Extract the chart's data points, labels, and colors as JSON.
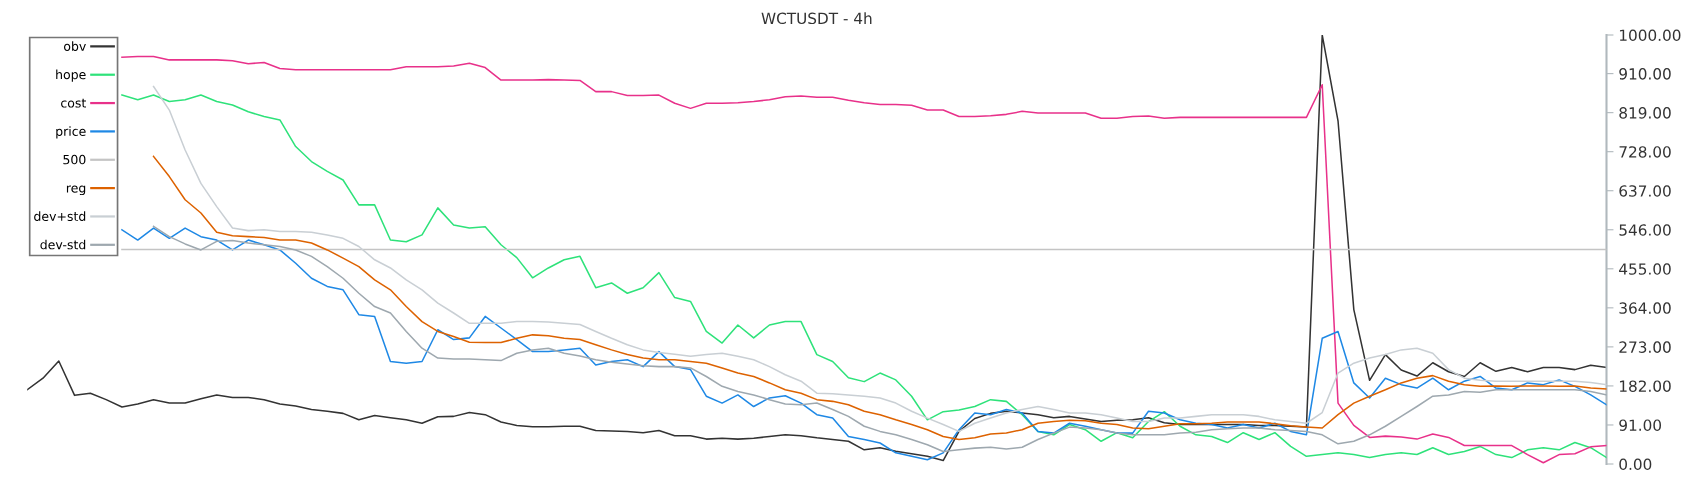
{
  "chart_data": {
    "type": "line",
    "title": "WCTUSDT - 4h",
    "categories": [
      null,
      null,
      null,
      null,
      null,
      null,
      null,
      null,
      null,
      null,
      null,
      null,
      null,
      null,
      null,
      null,
      null,
      null,
      null,
      null,
      null,
      null,
      null,
      null,
      null,
      null,
      null,
      null,
      null,
      null,
      null,
      null,
      null,
      null,
      null,
      null,
      null,
      null,
      null,
      null,
      null,
      null,
      null,
      null,
      null,
      null,
      null,
      null,
      null,
      null,
      null,
      null,
      null,
      null,
      null,
      null,
      null,
      null,
      null,
      null,
      null,
      null,
      null,
      null,
      null,
      null,
      null,
      null,
      null,
      null,
      null,
      null,
      null,
      null,
      null,
      null,
      null,
      null,
      null,
      null,
      null,
      null,
      null,
      null,
      null,
      null,
      null,
      null,
      null,
      null,
      null,
      null,
      null,
      null,
      null,
      null,
      null,
      null,
      null,
      null,
      null
    ],
    "series": [
      {
        "name": "obv",
        "color": "#333333",
        "values": [
          173,
          200,
          240,
          160,
          165,
          150,
          133,
          140,
          150,
          142,
          142,
          152,
          161,
          155,
          155,
          150,
          140,
          135,
          127,
          123,
          118,
          103,
          113,
          108,
          103,
          95,
          110,
          111,
          120,
          115,
          98,
          90,
          87,
          87,
          88,
          88,
          78,
          77,
          76,
          73,
          78,
          66,
          66,
          58,
          60,
          58,
          60,
          64,
          68,
          66,
          61,
          57,
          53,
          33,
          38,
          30,
          24,
          18,
          8,
          76,
          106,
          118,
          123,
          119,
          115,
          108,
          111,
          105,
          99,
          102,
          103,
          108,
          96,
          92,
          92,
          92,
          92,
          92,
          90,
          90,
          88,
          86,
          1000,
          800,
          360,
          195,
          255,
          219,
          205,
          236,
          215,
          204,
          236,
          216,
          225,
          215,
          225,
          225,
          220,
          230,
          225
        ]
      },
      {
        "name": "hope",
        "color": "#2ee27a",
        "values": [
          null,
          null,
          null,
          null,
          null,
          null,
          860,
          849,
          860,
          845,
          849,
          860,
          845,
          837,
          821,
          810,
          802,
          740,
          705,
          682,
          662,
          604,
          604,
          522,
          518,
          534,
          597,
          557,
          550,
          553,
          511,
          481,
          434,
          457,
          476,
          484,
          411,
          422,
          398,
          411,
          446,
          388,
          379,
          309,
          282,
          324,
          294,
          324,
          332,
          332,
          255,
          239,
          201,
          192,
          212,
          196,
          158,
          103,
          122,
          126,
          134,
          150,
          146,
          115,
          76,
          68,
          92,
          80,
          53,
          73,
          61,
          99,
          122,
          88,
          68,
          64,
          50,
          73,
          57,
          73,
          41,
          18,
          22,
          26,
          22,
          15,
          22,
          26,
          22,
          38,
          22,
          29,
          41,
          22,
          15,
          33,
          38,
          33,
          50,
          38,
          15
        ]
      },
      {
        "name": "cost",
        "color": "#e8318a",
        "values": [
          null,
          null,
          null,
          null,
          null,
          null,
          948,
          950,
          950,
          942,
          942,
          942,
          942,
          940,
          933,
          936,
          922,
          919,
          919,
          919,
          919,
          919,
          919,
          919,
          926,
          926,
          926,
          928,
          934,
          924,
          895,
          895,
          895,
          896,
          895,
          894,
          868,
          868,
          859,
          859,
          860,
          841,
          829,
          841,
          841,
          842,
          845,
          849,
          856,
          858,
          855,
          855,
          848,
          842,
          838,
          838,
          836,
          825,
          825,
          810,
          810,
          812,
          815,
          822,
          818,
          818,
          818,
          818,
          806,
          806,
          810,
          811,
          806,
          808,
          808,
          808,
          808,
          808,
          808,
          808,
          808,
          808,
          884,
          142,
          90,
          62,
          65,
          63,
          58,
          70,
          62,
          43,
          43,
          43,
          43,
          22,
          3,
          22,
          24,
          40,
          43
        ]
      },
      {
        "name": "price",
        "color": "#1e88e5",
        "values": [
          null,
          null,
          null,
          null,
          null,
          null,
          546,
          522,
          550,
          526,
          550,
          530,
          522,
          499,
          522,
          511,
          499,
          468,
          433,
          414,
          406,
          348,
          344,
          239,
          235,
          239,
          313,
          290,
          294,
          344,
          317,
          290,
          262,
          262,
          266,
          270,
          231,
          239,
          243,
          227,
          262,
          227,
          220,
          158,
          142,
          161,
          134,
          154,
          159,
          142,
          115,
          107,
          64,
          57,
          49,
          26,
          18,
          10,
          26,
          80,
          119,
          115,
          127,
          119,
          76,
          72,
          95,
          88,
          80,
          72,
          72,
          123,
          119,
          103,
          95,
          92,
          84,
          92,
          84,
          95,
          76,
          68,
          293,
          309,
          189,
          154,
          200,
          185,
          177,
          200,
          173,
          193,
          204,
          177,
          173,
          189,
          185,
          196,
          181,
          161,
          138
        ]
      },
      {
        "name": "500",
        "color": "#c4c4c4",
        "values": [
          null,
          null,
          null,
          null,
          null,
          null,
          500,
          500,
          500,
          500,
          500,
          500,
          500,
          500,
          500,
          500,
          500,
          500,
          500,
          500,
          500,
          500,
          500,
          500,
          500,
          500,
          500,
          500,
          500,
          500,
          500,
          500,
          500,
          500,
          500,
          500,
          500,
          500,
          500,
          500,
          500,
          500,
          500,
          500,
          500,
          500,
          500,
          500,
          500,
          500,
          500,
          500,
          500,
          500,
          500,
          500,
          500,
          500,
          500,
          500,
          500,
          500,
          500,
          500,
          500,
          500,
          500,
          500,
          500,
          500,
          500,
          500,
          500,
          500,
          500,
          500,
          500,
          500,
          500,
          500,
          500,
          500,
          500,
          500,
          500,
          500,
          500,
          500,
          500,
          500,
          500,
          500,
          500,
          500,
          500,
          500,
          500,
          500,
          500,
          500,
          500
        ]
      },
      {
        "name": "reg",
        "color": "#dd6200",
        "values": [
          null,
          null,
          null,
          null,
          null,
          null,
          null,
          null,
          717,
          670,
          616,
          585,
          540,
          532,
          530,
          528,
          522,
          522,
          515,
          499,
          480,
          460,
          429,
          406,
          367,
          332,
          309,
          297,
          284,
          283,
          283,
          293,
          301,
          299,
          293,
          290,
          278,
          266,
          255,
          247,
          243,
          243,
          239,
          235,
          224,
          212,
          204,
          189,
          173,
          165,
          150,
          146,
          138,
          123,
          115,
          103,
          92,
          80,
          64,
          57,
          61,
          70,
          72,
          80,
          95,
          99,
          102,
          101,
          95,
          92,
          84,
          82,
          88,
          94,
          94,
          95,
          98,
          98,
          98,
          94,
          89,
          86,
          84,
          115,
          142,
          158,
          173,
          189,
          200,
          206,
          193,
          185,
          181,
          182,
          181,
          182,
          182,
          181,
          182,
          177,
          175
        ]
      },
      {
        "name": "dev+std",
        "color": "#c9cfd4",
        "values": [
          null,
          null,
          null,
          null,
          null,
          null,
          null,
          null,
          880,
          825,
          732,
          654,
          600,
          550,
          544,
          546,
          542,
          542,
          540,
          534,
          526,
          507,
          476,
          457,
          429,
          406,
          375,
          352,
          328,
          328,
          328,
          332,
          332,
          331,
          328,
          325,
          309,
          293,
          278,
          266,
          260,
          256,
          251,
          255,
          258,
          251,
          243,
          227,
          208,
          193,
          165,
          164,
          161,
          158,
          154,
          142,
          123,
          107,
          92,
          76,
          95,
          107,
          119,
          127,
          134,
          127,
          119,
          119,
          115,
          107,
          99,
          99,
          107,
          107,
          111,
          115,
          115,
          115,
          111,
          103,
          99,
          95,
          120,
          212,
          235,
          247,
          255,
          266,
          270,
          258,
          220,
          200,
          195,
          193,
          193,
          193,
          193,
          193,
          193,
          190,
          185
        ]
      },
      {
        "name": "dev-std",
        "color": "#9ea8af",
        "values": [
          null,
          null,
          null,
          null,
          null,
          null,
          null,
          null,
          554,
          530,
          513,
          499,
          519,
          521,
          515,
          511,
          507,
          499,
          484,
          460,
          433,
          398,
          367,
          352,
          309,
          270,
          247,
          245,
          245,
          243,
          241,
          258,
          266,
          270,
          258,
          252,
          243,
          237,
          233,
          229,
          227,
          227,
          224,
          204,
          181,
          169,
          161,
          150,
          140,
          138,
          142,
          127,
          111,
          88,
          76,
          68,
          57,
          45,
          29,
          33,
          37,
          39,
          35,
          39,
          57,
          72,
          86,
          84,
          80,
          72,
          68,
          68,
          68,
          72,
          74,
          80,
          82,
          84,
          84,
          80,
          78,
          76,
          68,
          47,
          53,
          68,
          88,
          111,
          134,
          158,
          161,
          169,
          167,
          173,
          173,
          173,
          173,
          173,
          173,
          169,
          161
        ]
      }
    ],
    "ylim": [
      0,
      1000
    ],
    "yticks": [
      {
        "value": 0,
        "label": "0.00"
      },
      {
        "value": 91,
        "label": "91.00"
      },
      {
        "value": 182,
        "label": "182.00"
      },
      {
        "value": 273,
        "label": "273.00"
      },
      {
        "value": 364,
        "label": "364.00"
      },
      {
        "value": 455,
        "label": "455.00"
      },
      {
        "value": 546,
        "label": "546.00"
      },
      {
        "value": 637,
        "label": "637.00"
      },
      {
        "value": 728,
        "label": "728.00"
      },
      {
        "value": 819,
        "label": "819.00"
      },
      {
        "value": 910,
        "label": "910.00"
      },
      {
        "value": 1000,
        "label": "1000.00"
      }
    ],
    "tick_labels": "y",
    "legend": "top left",
    "grid": false,
    "marker": "none",
    "line_style": "solid"
  }
}
